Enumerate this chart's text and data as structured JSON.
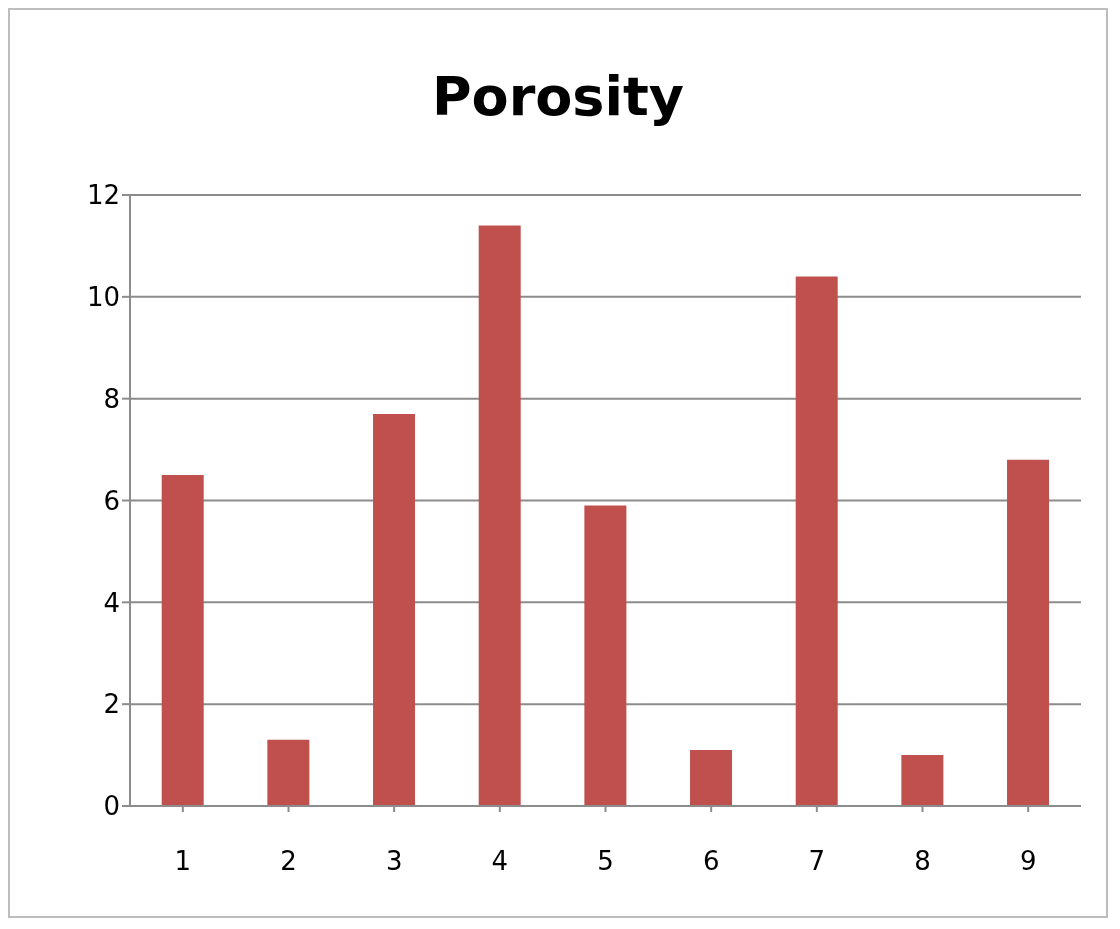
{
  "chart_data": {
    "type": "bar",
    "title": "Porosity",
    "categories": [
      "1",
      "2",
      "3",
      "4",
      "5",
      "6",
      "7",
      "8",
      "9"
    ],
    "values": [
      6.5,
      1.3,
      7.7,
      11.4,
      5.9,
      1.1,
      10.4,
      1.0,
      6.8
    ],
    "color": "#c0504d",
    "ylim": [
      0,
      12
    ],
    "yticks": [
      0,
      2,
      4,
      6,
      8,
      10,
      12
    ],
    "grid": "y",
    "legend": false
  }
}
